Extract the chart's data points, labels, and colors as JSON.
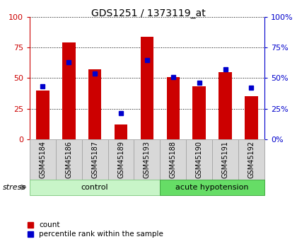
{
  "title": "GDS1251 / 1373119_at",
  "samples": [
    "GSM45184",
    "GSM45186",
    "GSM45187",
    "GSM45189",
    "GSM45193",
    "GSM45188",
    "GSM45190",
    "GSM45191",
    "GSM45192"
  ],
  "red_values": [
    40,
    79,
    57,
    12,
    84,
    51,
    43,
    55,
    35
  ],
  "blue_values": [
    43,
    63,
    54,
    21,
    65,
    51,
    46,
    57,
    42
  ],
  "groups": [
    {
      "label": "control",
      "start": 0,
      "end": 5,
      "color": "#c8f5c8",
      "edge_color": "#88cc88"
    },
    {
      "label": "acute hypotension",
      "start": 5,
      "end": 9,
      "color": "#66dd66",
      "edge_color": "#44aa44"
    }
  ],
  "stress_label": "stress",
  "ylim": [
    0,
    100
  ],
  "left_axis_color": "#cc0000",
  "right_axis_color": "#0000cc",
  "bar_color": "#cc0000",
  "marker_color": "#0000cc",
  "tick_bg_color": "#d8d8d8",
  "tick_edge_color": "#aaaaaa",
  "legend_count": "count",
  "legend_pct": "percentile rank within the sample",
  "yticks": [
    0,
    25,
    50,
    75,
    100
  ]
}
